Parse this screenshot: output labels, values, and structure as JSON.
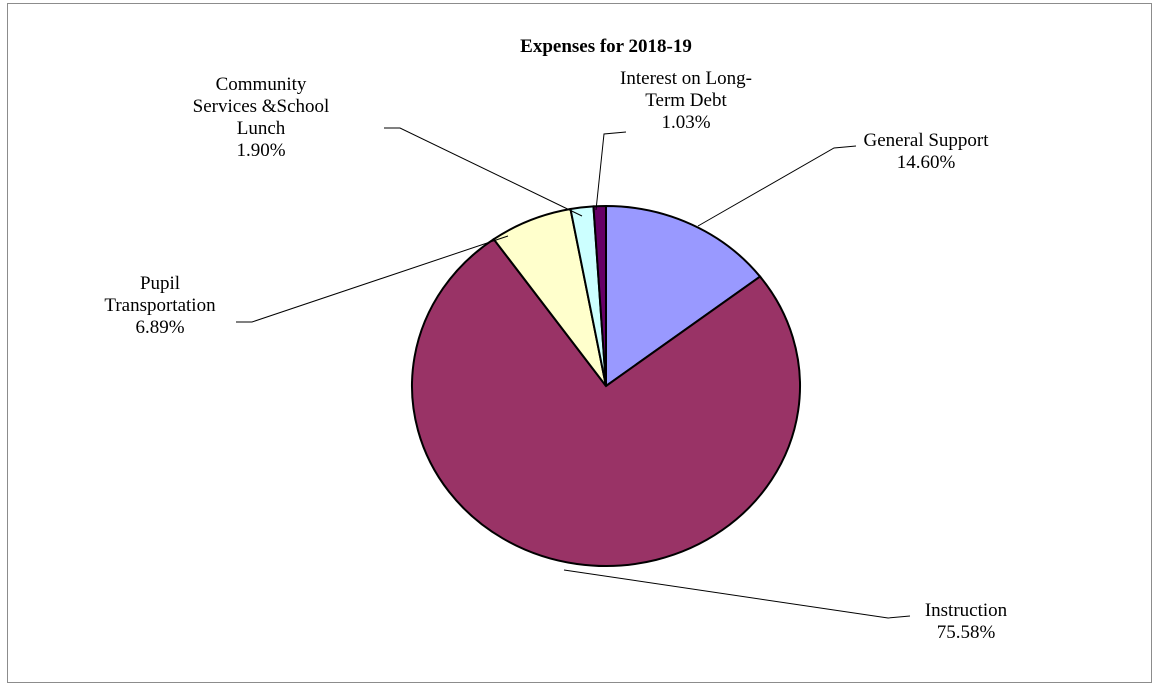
{
  "chart_data": {
    "type": "pie",
    "title": "Expenses for 2018-19",
    "slices": [
      {
        "label_lines": [
          "General Support"
        ],
        "value_text": "14.60%",
        "value": 14.6,
        "color": "#9999ff"
      },
      {
        "label_lines": [
          "Instruction"
        ],
        "value_text": "75.58%",
        "value": 75.58,
        "color": "#993366"
      },
      {
        "label_lines": [
          "Pupil",
          "Transportation"
        ],
        "value_text": "6.89%",
        "value": 6.89,
        "color": "#ffffcc"
      },
      {
        "label_lines": [
          "Community",
          "Services &School",
          "Lunch"
        ],
        "value_text": "1.90%",
        "value": 1.9,
        "color": "#ccffff"
      },
      {
        "label_lines": [
          "Interest on Long-",
          "Term Debt"
        ],
        "value_text": "1.03%",
        "value": 1.03,
        "color": "#660066"
      }
    ]
  }
}
